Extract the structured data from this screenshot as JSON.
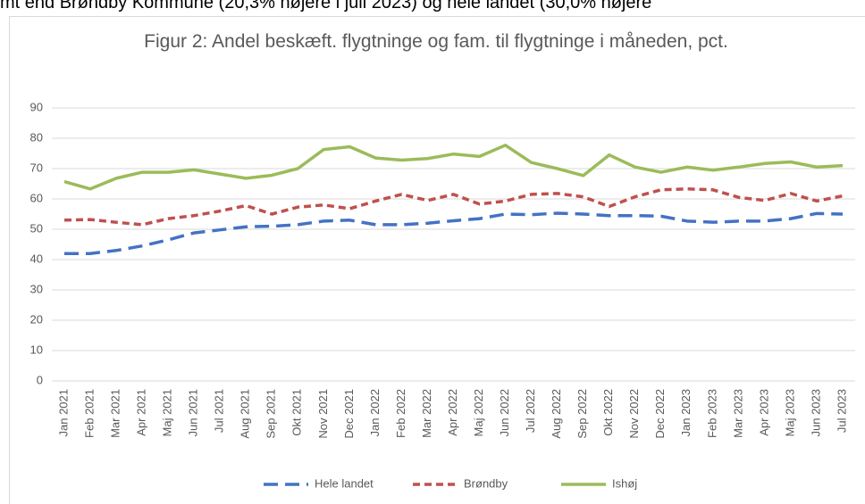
{
  "top_text": "mt end Brøndby Kommune (20,3% højere i juli 2023) og hele landet (30,0% højere",
  "chart_data": {
    "type": "line",
    "title": "Figur 2: Andel beskæft. flygtninge og fam. til flygtninge i måneden, pct.",
    "categories": [
      "Jan 2021",
      "Feb 2021",
      "Mar 2021",
      "Apr 2021",
      "Maj 2021",
      "Jun 2021",
      "Jul 2021",
      "Aug 2021",
      "Sep 2021",
      "Okt 2021",
      "Nov 2021",
      "Dec 2021",
      "Jan 2022",
      "Feb 2022",
      "Mar 2022",
      "Apr 2022",
      "Maj 2022",
      "Jun 2022",
      "Jul 2022",
      "Aug 2022",
      "Sep 2022",
      "Okt 2022",
      "Nov 2022",
      "Dec 2022",
      "Jan 2023",
      "Feb 2023",
      "Mar 2023",
      "Apr 2023",
      "Maj 2023",
      "Jun 2023",
      "Jul 2023"
    ],
    "series": [
      {
        "name": "Hele landet",
        "color": "#4472c4",
        "dash": "long",
        "values": [
          42,
          42,
          43,
          44.5,
          46.5,
          48.8,
          49.8,
          50.8,
          51,
          51.5,
          52.7,
          53,
          51.5,
          51.5,
          52,
          52.8,
          53.5,
          55,
          54.8,
          55.3,
          55,
          54.5,
          54.5,
          54.3,
          52.7,
          52.3,
          52.7,
          52.7,
          53.5,
          55.2,
          55
        ]
      },
      {
        "name": "Brøndby",
        "color": "#c0504d",
        "dash": "short",
        "values": [
          53,
          53.2,
          52.3,
          51.5,
          53.5,
          54.5,
          56,
          57.8,
          55,
          57.3,
          58,
          56.8,
          59.3,
          61.5,
          59.5,
          61.5,
          58.3,
          59.3,
          61.5,
          61.8,
          60.7,
          57.5,
          60.7,
          63,
          63.3,
          63,
          60.5,
          59.5,
          61.8,
          59.3,
          61
        ]
      },
      {
        "name": "Ishøj",
        "color": "#9bbb59",
        "dash": "solid",
        "values": [
          65.7,
          63.3,
          66.8,
          68.8,
          68.8,
          69.6,
          68.2,
          66.8,
          67.8,
          70,
          76.3,
          77.2,
          73.5,
          72.8,
          73.3,
          74.8,
          74,
          77.7,
          72,
          70,
          67.7,
          74.5,
          70.5,
          68.8,
          70.5,
          69.5,
          70.5,
          71.7,
          72.2,
          70.5,
          71
        ]
      }
    ],
    "ylim": [
      0,
      90
    ],
    "yticks": [
      0,
      10,
      20,
      30,
      40,
      50,
      60,
      70,
      80,
      90
    ],
    "grid": true,
    "legend": "bottom"
  }
}
